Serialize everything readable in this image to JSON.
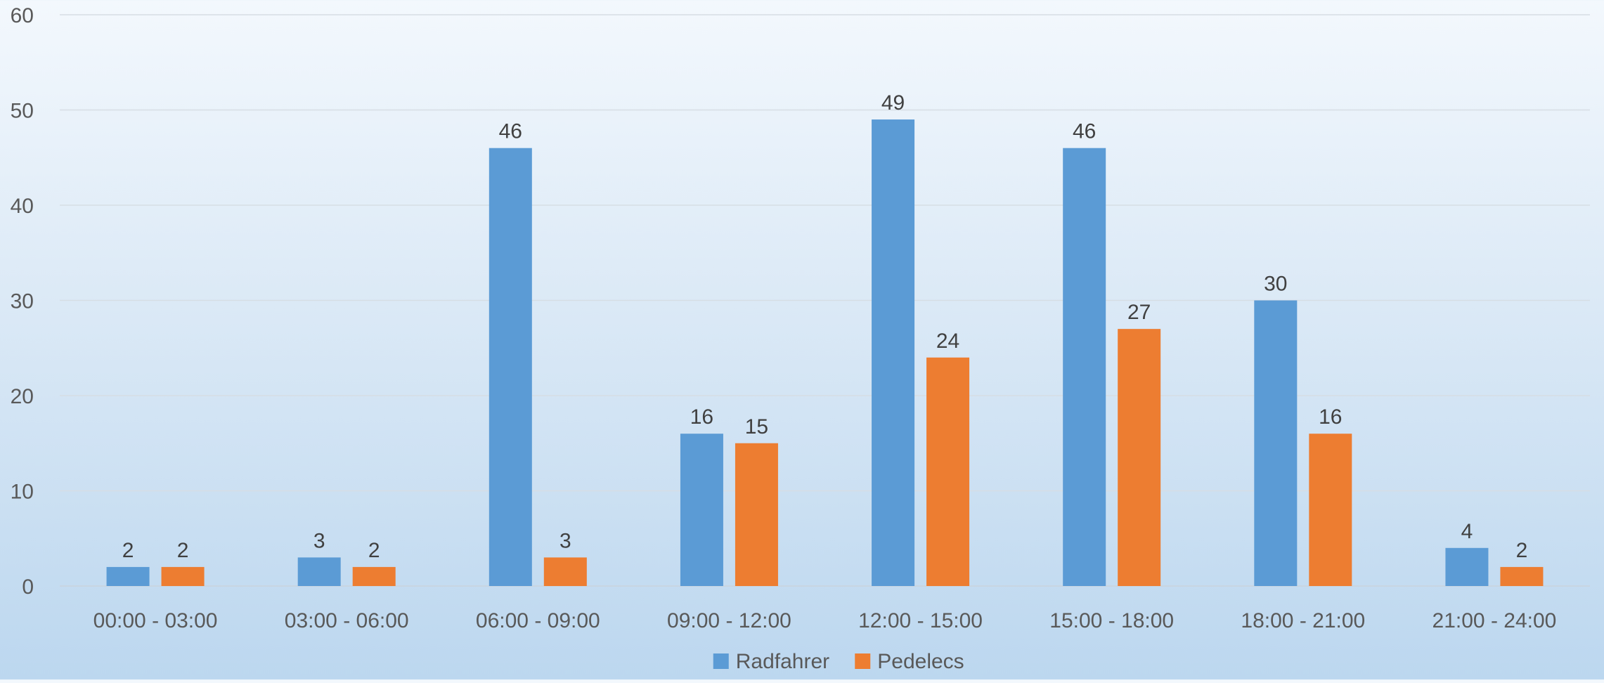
{
  "chart_data": {
    "type": "bar",
    "title": "",
    "xlabel": "",
    "ylabel": "",
    "categories": [
      "00:00 - 03:00",
      "03:00 - 06:00",
      "06:00 - 09:00",
      "09:00 - 12:00",
      "12:00 - 15:00",
      "15:00 - 18:00",
      "18:00 - 21:00",
      "21:00 - 24:00"
    ],
    "series": [
      {
        "name": "Radfahrer",
        "color": "#5b9bd5",
        "values": [
          2,
          3,
          46,
          16,
          49,
          46,
          30,
          4
        ]
      },
      {
        "name": "Pedelecs",
        "color": "#ed7d31",
        "values": [
          2,
          2,
          3,
          15,
          24,
          27,
          16,
          2
        ]
      }
    ],
    "ylim": [
      0,
      60
    ],
    "yticks": [
      0,
      10,
      20,
      30,
      40,
      50,
      60
    ],
    "grid": true,
    "data_labels": true,
    "legend_position": "bottom"
  }
}
